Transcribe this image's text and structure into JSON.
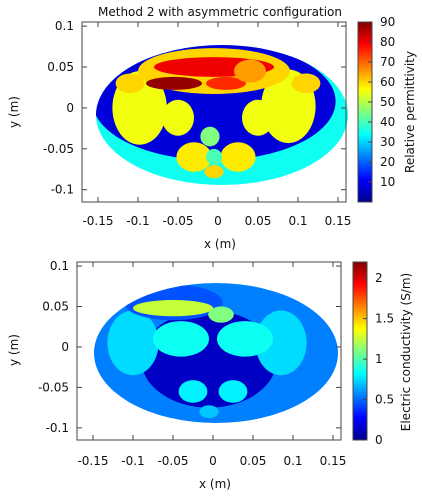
{
  "chart_data": [
    {
      "type": "heatmap",
      "title": "Method 2 with asymmetric configuration",
      "xlabel": "x (m)",
      "ylabel": "y (m)",
      "xlim": [
        -0.17,
        0.16
      ],
      "ylim": [
        -0.115,
        0.105
      ],
      "xticks": [
        -0.15,
        -0.1,
        -0.05,
        0,
        0.05,
        0.1,
        0.15
      ],
      "xtick_labels": [
        "-0.15",
        "-0.1",
        "-0.05",
        "0",
        "0.05",
        "0.1",
        "0.15"
      ],
      "yticks": [
        0.1,
        0.05,
        0,
        -0.05,
        -0.1
      ],
      "ytick_labels": [
        "0.1",
        "0.05",
        "0",
        "-0.05",
        "-0.1"
      ],
      "colorbar": {
        "label": "Relative permittivity",
        "range": [
          0,
          90
        ],
        "ticks": [
          10,
          20,
          30,
          40,
          50,
          60,
          70,
          80,
          90
        ],
        "tick_labels": [
          "10",
          "20",
          "30",
          "40",
          "50",
          "60",
          "70",
          "80",
          "90"
        ],
        "colormap": "jet"
      },
      "background_value": 35,
      "regions": [
        {
          "shape": "ellipse",
          "cx": -0.005,
          "cy": 0.008,
          "rx": 0.152,
          "ry": 0.072,
          "value": 8
        },
        {
          "shape": "ellipse",
          "cx": -0.098,
          "cy": 0.0,
          "rx": 0.034,
          "ry": 0.045,
          "value": 55
        },
        {
          "shape": "ellipse",
          "cx": 0.088,
          "cy": 0.002,
          "rx": 0.034,
          "ry": 0.045,
          "value": 55
        },
        {
          "shape": "ellipse",
          "cx": -0.11,
          "cy": 0.03,
          "rx": 0.018,
          "ry": 0.012,
          "value": 60
        },
        {
          "shape": "ellipse",
          "cx": 0.11,
          "cy": 0.03,
          "rx": 0.018,
          "ry": 0.012,
          "value": 60
        },
        {
          "shape": "ellipse",
          "cx": -0.005,
          "cy": 0.045,
          "rx": 0.095,
          "ry": 0.028,
          "value": 60
        },
        {
          "shape": "ellipse",
          "cx": -0.005,
          "cy": 0.05,
          "rx": 0.075,
          "ry": 0.012,
          "value": 80
        },
        {
          "shape": "ellipse",
          "cx": -0.055,
          "cy": 0.03,
          "rx": 0.035,
          "ry": 0.008,
          "value": 88
        },
        {
          "shape": "ellipse",
          "cx": 0.01,
          "cy": 0.03,
          "rx": 0.025,
          "ry": 0.008,
          "value": 75
        },
        {
          "shape": "ellipse",
          "cx": 0.04,
          "cy": 0.045,
          "rx": 0.02,
          "ry": 0.014,
          "value": 65
        },
        {
          "shape": "ellipse",
          "cx": -0.05,
          "cy": -0.012,
          "rx": 0.02,
          "ry": 0.022,
          "value": 55
        },
        {
          "shape": "ellipse",
          "cx": 0.05,
          "cy": -0.012,
          "rx": 0.02,
          "ry": 0.022,
          "value": 55
        },
        {
          "shape": "ellipse",
          "cx": -0.03,
          "cy": -0.06,
          "rx": 0.022,
          "ry": 0.018,
          "value": 58
        },
        {
          "shape": "ellipse",
          "cx": 0.025,
          "cy": -0.06,
          "rx": 0.022,
          "ry": 0.018,
          "value": 58
        },
        {
          "shape": "ellipse",
          "cx": -0.005,
          "cy": -0.06,
          "rx": 0.01,
          "ry": 0.01,
          "value": 40
        },
        {
          "shape": "ellipse",
          "cx": -0.01,
          "cy": -0.035,
          "rx": 0.012,
          "ry": 0.012,
          "value": 45
        },
        {
          "shape": "ellipse",
          "cx": -0.005,
          "cy": -0.078,
          "rx": 0.012,
          "ry": 0.008,
          "value": 60
        }
      ]
    },
    {
      "type": "heatmap",
      "title": "",
      "xlabel": "x (m)",
      "ylabel": "y (m)",
      "xlim": [
        -0.17,
        0.16
      ],
      "ylim": [
        -0.115,
        0.105
      ],
      "xticks": [
        -0.15,
        -0.1,
        -0.05,
        0,
        0.05,
        0.1,
        0.15
      ],
      "xtick_labels": [
        "-0.15",
        "-0.1",
        "-0.05",
        "0",
        "0.05",
        "0.1",
        "0.15"
      ],
      "yticks": [
        0.1,
        0.05,
        0,
        -0.05,
        -0.1
      ],
      "ytick_labels": [
        "0.1",
        "0.05",
        "0",
        "-0.05",
        "-0.1"
      ],
      "colorbar": {
        "label": "Electric conductivity (S/m)",
        "range": [
          0,
          2.2
        ],
        "ticks": [
          0,
          0.5,
          1,
          1.5,
          2
        ],
        "tick_labels": [
          "0",
          "0.5",
          "1",
          "1.5",
          "2"
        ],
        "colormap": "jet"
      },
      "background_value": 0.55,
      "regions": [
        {
          "shape": "ellipse",
          "cx": -0.005,
          "cy": -0.015,
          "rx": 0.085,
          "ry": 0.06,
          "value": 0.15
        },
        {
          "shape": "ellipse",
          "cx": -0.1,
          "cy": 0.005,
          "rx": 0.032,
          "ry": 0.04,
          "value": 0.75
        },
        {
          "shape": "ellipse",
          "cx": 0.085,
          "cy": 0.005,
          "rx": 0.032,
          "ry": 0.04,
          "value": 0.75
        },
        {
          "shape": "ellipse",
          "cx": -0.04,
          "cy": 0.01,
          "rx": 0.035,
          "ry": 0.022,
          "value": 0.85
        },
        {
          "shape": "ellipse",
          "cx": 0.04,
          "cy": 0.01,
          "rx": 0.035,
          "ry": 0.022,
          "value": 0.85
        },
        {
          "shape": "ellipse",
          "cx": -0.05,
          "cy": 0.055,
          "rx": 0.062,
          "ry": 0.022,
          "value": 0.45
        },
        {
          "shape": "ellipse",
          "cx": -0.05,
          "cy": 0.048,
          "rx": 0.05,
          "ry": 0.01,
          "value": 1.25
        },
        {
          "shape": "ellipse",
          "cx": 0.01,
          "cy": 0.04,
          "rx": 0.016,
          "ry": 0.01,
          "value": 1.1
        },
        {
          "shape": "ellipse",
          "cx": -0.025,
          "cy": -0.055,
          "rx": 0.018,
          "ry": 0.014,
          "value": 0.8
        },
        {
          "shape": "ellipse",
          "cx": 0.025,
          "cy": -0.055,
          "rx": 0.018,
          "ry": 0.014,
          "value": 0.8
        },
        {
          "shape": "ellipse",
          "cx": -0.005,
          "cy": -0.08,
          "rx": 0.012,
          "ry": 0.008,
          "value": 0.7
        }
      ]
    }
  ]
}
